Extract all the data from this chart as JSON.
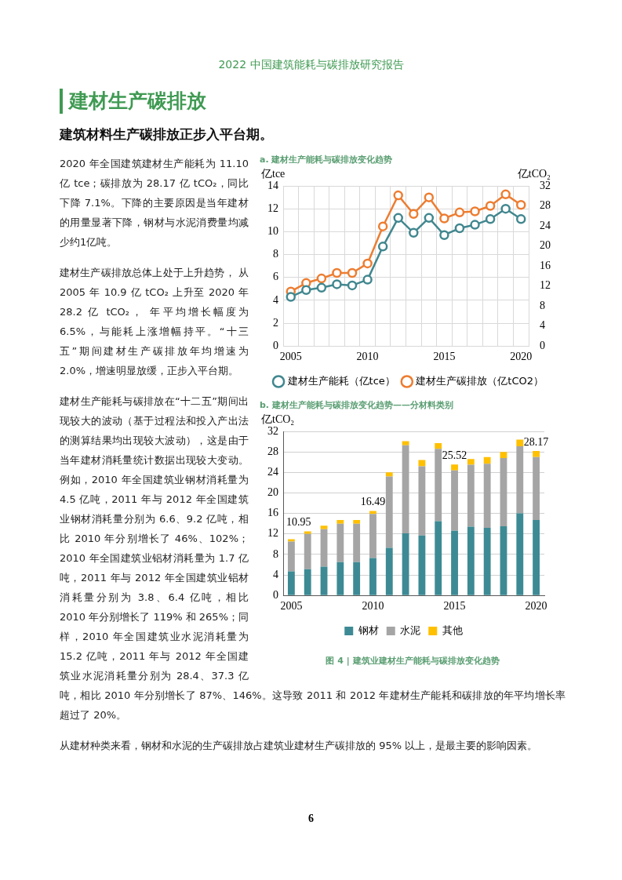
{
  "chart_data": [
    {
      "type": "line",
      "title": "a. 建材生产能耗与碳排放变化趋势",
      "ylabel": "亿tce",
      "y2label": "亿tCO₂",
      "categories": [
        "2005",
        null,
        null,
        null,
        null,
        "2010",
        null,
        null,
        null,
        null,
        "2015",
        null,
        null,
        null,
        null,
        "2020"
      ],
      "series": [
        {
          "name": "建材生产能耗（亿tce）",
          "color": "#41878f",
          "values": [
            4.3,
            4.9,
            5.1,
            5.4,
            5.3,
            5.8,
            8.7,
            11.2,
            9.9,
            11.2,
            9.7,
            10.3,
            10.6,
            11.1,
            12.0,
            11.1
          ]
        },
        {
          "name": "建材生产碳排放（亿tCO2）",
          "color": "#ed7d31",
          "axis": "y2",
          "values": [
            10.9,
            12.6,
            13.5,
            14.6,
            14.6,
            16.5,
            23.9,
            30.1,
            26.4,
            29.7,
            25.5,
            26.7,
            26.9,
            28.0,
            30.3,
            28.2
          ]
        }
      ],
      "ylim": [
        0,
        14
      ],
      "yticks": [
        0,
        2,
        4,
        6,
        8,
        10,
        12,
        14
      ],
      "y2lim": [
        0,
        32
      ],
      "y2ticks": [
        0,
        4,
        8,
        12,
        16,
        20,
        24,
        28,
        32
      ],
      "grid": true,
      "legend": "bottom",
      "marker": "circle",
      "line_style": "solid"
    },
    {
      "type": "bar",
      "title": "b. 建材生产能耗与碳排放变化趋势——分材料类别",
      "ylabel": "亿tCO₂",
      "stacked": true,
      "categories": [
        "2005",
        null,
        null,
        null,
        null,
        "2010",
        null,
        null,
        null,
        null,
        "2015",
        null,
        null,
        null,
        null,
        "2020"
      ],
      "series": [
        {
          "name": "钢材",
          "color": "#3d8a94",
          "values": [
            4.7,
            5.1,
            5.6,
            6.5,
            6.5,
            7.3,
            9.3,
            12.1,
            11.7,
            14.5,
            12.6,
            13.4,
            13.2,
            13.5,
            16.0,
            14.7
          ]
        },
        {
          "name": "水泥",
          "color": "#a5a5a5",
          "values": [
            5.8,
            6.9,
            7.3,
            7.5,
            7.5,
            8.6,
            13.9,
            17.2,
            13.5,
            14.1,
            11.8,
            12.1,
            12.5,
            13.3,
            13.1,
            12.3
          ]
        },
        {
          "name": "其他",
          "color": "#ffc000",
          "values": [
            0.45,
            0.5,
            0.7,
            0.7,
            0.7,
            0.59,
            0.8,
            0.8,
            1.2,
            1.1,
            1.12,
            1.1,
            1.3,
            1.2,
            1.3,
            1.17
          ]
        }
      ],
      "totals": [
        "10.95",
        null,
        null,
        null,
        null,
        "16.49",
        null,
        null,
        null,
        null,
        "25.52",
        null,
        null,
        null,
        null,
        "28.17"
      ],
      "ylim": [
        0,
        32
      ],
      "yticks": [
        0,
        4,
        8,
        12,
        16,
        20,
        24,
        28,
        32
      ],
      "grid": "y",
      "legend": "bottom",
      "annotations": [
        "图 4 | 建筑业建材生产能耗与碳排放变化趋势"
      ]
    },
    {
      "type": "other",
      "title": "建材生产碳排放",
      "subtitle": "建筑材料生产碳排放正步入平台期。",
      "annotations": [
        "2022 中国建筑能耗与碳排放研究报告",
        "2020 年全国建筑建材生产能耗为 11.10 亿 tce；碳排放为 28.17 亿 tCO₂，同比下降 7.1%。下降的主要原因是当年建材的用量显著下降，钢材与水泥消费量均减少约1亿吨。",
        "建材生产碳排放总体上处于上升趋势， 从 2005 年 10.9 亿 tCO₂ 上升至 2020 年 28.2 亿 tCO₂， 年平均增长幅度为 6.5%，与能耗上涨增幅持平。“十三五”期间建材生产碳排放年均增速为 2.0%，增速明显放缓，正步入平台期。",
        "建材生产能耗与碳排放在“十二五”期间出现较大的波动（基于过程法和投入产出法的测算结果均出现较大波动），这是由于当年建材消耗量统计数据出现较大变动。例如，2010 年全国建筑业钢材消耗量为 4.5 亿吨，2011 年与 2012 年全国建筑业钢材消耗量分别为 6.6、9.2 亿吨，相比 2010 年分别增长了 46%、102%；2010 年全国建筑业铝材消耗量为 1.7 亿吨，2011 年与 2012 年全国建筑业铝材消耗量分别为 3.8、6.4 亿吨，相比 2010 年分别增长了 119% 和 265%；同样，2010 年全国建筑业水泥消耗量为 15.2 亿吨，2011 年与 2012 年全国建筑业水泥消耗量分别为 28.4、37.3 亿吨，相比 2010 年分别增长了 87%、146%。这导致 2011 和 2012 年建材生产能耗和碳排放的年平均增长率超过了 20%。",
        "从建材种类来看，钢材和水泥的生产碳排放占建筑业建材生产碳排放的 95% 以上，是最主要的影响因素。",
        "6"
      ]
    }
  ]
}
